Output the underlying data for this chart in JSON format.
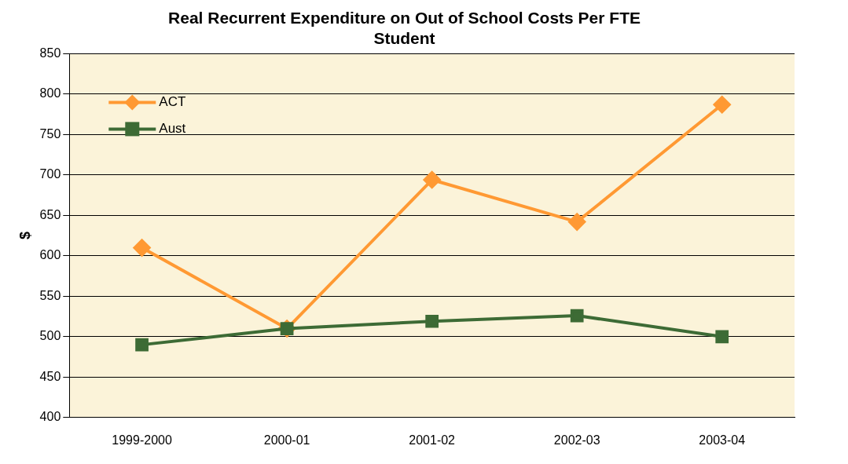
{
  "chart_data": {
    "type": "line",
    "title": "Real Recurrent Expenditure on Out of School Costs Per FTE Student",
    "ylabel": "$",
    "categories": [
      "1999-2000",
      "2000-01",
      "2001-02",
      "2002-03",
      "2003-04"
    ],
    "series": [
      {
        "name": "ACT",
        "color": "#ff9933",
        "marker": "diamond",
        "values": [
          610,
          510,
          694,
          642,
          787
        ]
      },
      {
        "name": "Aust",
        "color": "#3d6b35",
        "marker": "square",
        "values": [
          490,
          510,
          519,
          526,
          500
        ]
      }
    ],
    "ylim": [
      400,
      850
    ],
    "yticks": [
      400,
      450,
      500,
      550,
      600,
      650,
      700,
      750,
      800,
      850
    ],
    "grid": "y",
    "legend": "top left"
  }
}
